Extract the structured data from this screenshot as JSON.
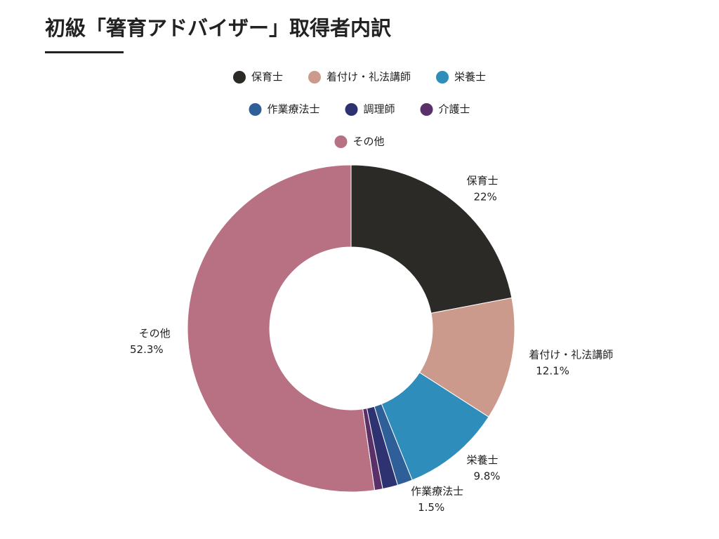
{
  "chart_data": {
    "type": "donut",
    "title": "初級「箸育アドバイザー」取得者内訳",
    "categories": [
      "保育士",
      "着付け・礼法講師",
      "栄養士",
      "作業療法士",
      "調理師",
      "介護士",
      "その他"
    ],
    "values": [
      22,
      12.1,
      9.8,
      1.5,
      1.5,
      0.8,
      52.3
    ],
    "value_labels": [
      "22%",
      "12.1%",
      "9.8%",
      "1.5%",
      null,
      null,
      "52.3%"
    ],
    "colors": [
      "#2b2a27",
      "#cc9a8c",
      "#2e8dbb",
      "#2f5f99",
      "#2e3270",
      "#5b2f68",
      "#b87083"
    ]
  }
}
